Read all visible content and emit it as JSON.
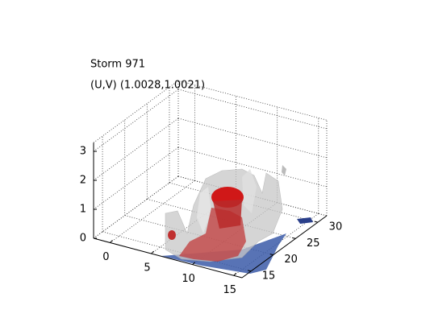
{
  "chart_data": {
    "type": "isosurface3d",
    "title": "Storm 971",
    "subtitle": "(U,V) (1.0028,1.0021)",
    "xlim": [
      -2,
      16
    ],
    "xticks": [
      0,
      5,
      10,
      15
    ],
    "ylim": [
      13,
      32
    ],
    "yticks": [
      15,
      20,
      25,
      30
    ],
    "zlim": [
      0,
      3.3
    ],
    "zticks": [
      0,
      1,
      2,
      3
    ],
    "grid": true
  }
}
